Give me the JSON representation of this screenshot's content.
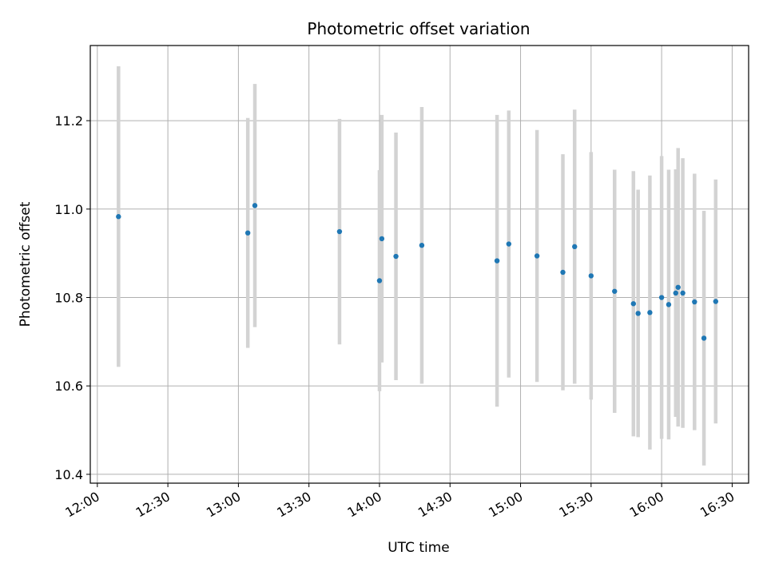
{
  "chart_data": {
    "type": "scatter",
    "title": "Photometric offset variation",
    "xlabel": "UTC time",
    "ylabel": "Photometric offset",
    "x_ticks": [
      "12:00",
      "12:30",
      "13:00",
      "13:30",
      "14:00",
      "14:30",
      "15:00",
      "15:30",
      "16:00",
      "16:30"
    ],
    "y_ticks": [
      "10.4",
      "10.6",
      "10.8",
      "11.0",
      "11.2"
    ],
    "xlim": [
      "11:57",
      "16:37"
    ],
    "ylim": [
      10.38,
      11.37
    ],
    "grid": true,
    "marker_color": "#1f77b4",
    "errorbar_color": "#d3d3d3",
    "points": [
      {
        "x": "12:09",
        "y": 10.983,
        "err": 0.34
      },
      {
        "x": "13:04",
        "y": 10.946,
        "err": 0.26
      },
      {
        "x": "13:07",
        "y": 11.008,
        "err": 0.275
      },
      {
        "x": "13:43",
        "y": 10.949,
        "err": 0.255
      },
      {
        "x": "14:00",
        "y": 10.838,
        "err": 0.25
      },
      {
        "x": "14:01",
        "y": 10.933,
        "err": 0.28
      },
      {
        "x": "14:07",
        "y": 10.893,
        "err": 0.28
      },
      {
        "x": "14:18",
        "y": 10.918,
        "err": 0.313
      },
      {
        "x": "14:50",
        "y": 10.883,
        "err": 0.33
      },
      {
        "x": "14:55",
        "y": 10.921,
        "err": 0.302
      },
      {
        "x": "15:07",
        "y": 10.894,
        "err": 0.285
      },
      {
        "x": "15:18",
        "y": 10.857,
        "err": 0.267
      },
      {
        "x": "15:23",
        "y": 10.915,
        "err": 0.31
      },
      {
        "x": "15:30",
        "y": 10.849,
        "err": 0.28
      },
      {
        "x": "15:40",
        "y": 10.814,
        "err": 0.275
      },
      {
        "x": "15:48",
        "y": 10.786,
        "err": 0.3
      },
      {
        "x": "15:50",
        "y": 10.764,
        "err": 0.28
      },
      {
        "x": "15:55",
        "y": 10.766,
        "err": 0.31
      },
      {
        "x": "16:00",
        "y": 10.8,
        "err": 0.32
      },
      {
        "x": "16:03",
        "y": 10.784,
        "err": 0.305
      },
      {
        "x": "16:06",
        "y": 10.81,
        "err": 0.28
      },
      {
        "x": "16:07",
        "y": 10.823,
        "err": 0.315
      },
      {
        "x": "16:09",
        "y": 10.81,
        "err": 0.305
      },
      {
        "x": "16:14",
        "y": 10.79,
        "err": 0.29
      },
      {
        "x": "16:18",
        "y": 10.708,
        "err": 0.288
      },
      {
        "x": "16:23",
        "y": 10.791,
        "err": 0.276
      }
    ]
  }
}
